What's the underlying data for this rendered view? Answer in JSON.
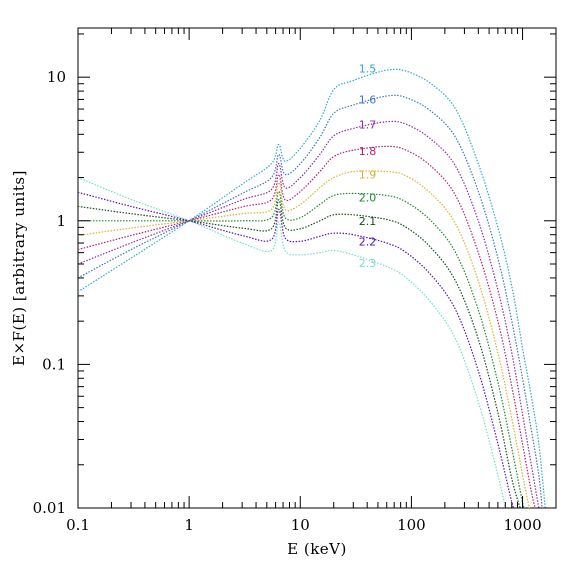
{
  "chart_data": {
    "type": "line",
    "title": "",
    "xlabel": "E (keV)",
    "ylabel": "E×F(E) [arbitrary units]",
    "xscale": "log",
    "yscale": "log",
    "xlim": [
      0.1,
      2000
    ],
    "ylim": [
      0.01,
      22
    ],
    "grid": false,
    "legend": "inline labels near the curve peaks",
    "x_ticks": [
      {
        "value": 0.1,
        "label": "0.1"
      },
      {
        "value": 1,
        "label": "1"
      },
      {
        "value": 10,
        "label": "10"
      },
      {
        "value": 100,
        "label": "100"
      },
      {
        "value": 1000,
        "label": "1000"
      }
    ],
    "y_ticks": [
      {
        "value": 0.01,
        "label": "0.01"
      },
      {
        "value": 0.1,
        "label": "0.1"
      },
      {
        "value": 1,
        "label": "1"
      },
      {
        "value": 10,
        "label": "10"
      }
    ],
    "line_style": "dotted",
    "series": [
      {
        "name": "1.5",
        "color": "#29a9d8",
        "label_at": [
          38,
          11.5
        ],
        "points": [
          [
            0.1,
            0.32
          ],
          [
            0.3,
            0.55
          ],
          [
            1,
            1.0
          ],
          [
            3,
            1.8
          ],
          [
            5.5,
            2.5
          ],
          [
            6.4,
            3.4
          ],
          [
            7.3,
            2.6
          ],
          [
            10,
            3.2
          ],
          [
            15,
            5.0
          ],
          [
            20,
            8.2
          ],
          [
            30,
            9.5
          ],
          [
            60,
            11.2
          ],
          [
            90,
            11.0
          ],
          [
            150,
            9.0
          ],
          [
            250,
            6.0
          ],
          [
            400,
            2.5
          ],
          [
            600,
            0.9
          ],
          [
            800,
            0.35
          ],
          [
            1000,
            0.13
          ],
          [
            1200,
            0.06
          ],
          [
            1400,
            0.028
          ],
          [
            1600,
            0.01
          ]
        ]
      },
      {
        "name": "1.6",
        "color": "#3b76bf",
        "label_at": [
          38,
          7.0
        ],
        "points": [
          [
            0.1,
            0.4
          ],
          [
            0.3,
            0.63
          ],
          [
            1,
            1.0
          ],
          [
            3,
            1.55
          ],
          [
            5.5,
            2.0
          ],
          [
            6.4,
            2.9
          ],
          [
            7.3,
            2.1
          ],
          [
            10,
            2.5
          ],
          [
            15,
            3.8
          ],
          [
            20,
            5.6
          ],
          [
            30,
            6.4
          ],
          [
            60,
            7.4
          ],
          [
            90,
            7.2
          ],
          [
            150,
            5.8
          ],
          [
            250,
            3.8
          ],
          [
            400,
            1.6
          ],
          [
            600,
            0.55
          ],
          [
            800,
            0.2
          ],
          [
            1000,
            0.08
          ],
          [
            1200,
            0.035
          ],
          [
            1400,
            0.017
          ],
          [
            1500,
            0.01
          ]
        ]
      },
      {
        "name": "1.7",
        "color": "#8e2cb3",
        "label_at": [
          38,
          4.7
        ],
        "points": [
          [
            0.1,
            0.5
          ],
          [
            0.3,
            0.7
          ],
          [
            1,
            1.0
          ],
          [
            3,
            1.4
          ],
          [
            5.5,
            1.65
          ],
          [
            6.4,
            2.5
          ],
          [
            7.3,
            1.7
          ],
          [
            10,
            2.0
          ],
          [
            15,
            2.9
          ],
          [
            20,
            3.9
          ],
          [
            30,
            4.4
          ],
          [
            60,
            4.9
          ],
          [
            90,
            4.7
          ],
          [
            150,
            3.7
          ],
          [
            250,
            2.4
          ],
          [
            400,
            1.0
          ],
          [
            600,
            0.33
          ],
          [
            800,
            0.12
          ],
          [
            1000,
            0.045
          ],
          [
            1200,
            0.02
          ],
          [
            1400,
            0.01
          ]
        ]
      },
      {
        "name": "1.8",
        "color": "#b51e7a",
        "label_at": [
          38,
          3.05
        ],
        "points": [
          [
            0.1,
            0.63
          ],
          [
            0.3,
            0.79
          ],
          [
            1,
            1.0
          ],
          [
            3,
            1.25
          ],
          [
            5.5,
            1.4
          ],
          [
            6.4,
            2.1
          ],
          [
            7.3,
            1.4
          ],
          [
            10,
            1.6
          ],
          [
            15,
            2.2
          ],
          [
            20,
            2.8
          ],
          [
            30,
            3.1
          ],
          [
            60,
            3.3
          ],
          [
            90,
            3.1
          ],
          [
            150,
            2.4
          ],
          [
            250,
            1.5
          ],
          [
            400,
            0.6
          ],
          [
            600,
            0.2
          ],
          [
            800,
            0.07
          ],
          [
            1000,
            0.028
          ],
          [
            1200,
            0.013
          ],
          [
            1300,
            0.01
          ]
        ]
      },
      {
        "name": "1.9",
        "color": "#d9b32e",
        "label_at": [
          38,
          2.1
        ],
        "points": [
          [
            0.1,
            0.79
          ],
          [
            0.3,
            0.89
          ],
          [
            1,
            1.0
          ],
          [
            3,
            1.12
          ],
          [
            5.5,
            1.2
          ],
          [
            6.4,
            1.85
          ],
          [
            7.3,
            1.2
          ],
          [
            10,
            1.3
          ],
          [
            15,
            1.7
          ],
          [
            20,
            2.0
          ],
          [
            30,
            2.2
          ],
          [
            60,
            2.2
          ],
          [
            90,
            2.05
          ],
          [
            150,
            1.55
          ],
          [
            250,
            0.95
          ],
          [
            400,
            0.38
          ],
          [
            600,
            0.12
          ],
          [
            800,
            0.042
          ],
          [
            1000,
            0.017
          ],
          [
            1150,
            0.01
          ]
        ]
      },
      {
        "name": "2.0",
        "color": "#1e8a2c",
        "label_at": [
          38,
          1.45
        ],
        "points": [
          [
            0.1,
            1.0
          ],
          [
            0.3,
            1.0
          ],
          [
            1,
            1.0
          ],
          [
            3,
            1.0
          ],
          [
            5.5,
            1.05
          ],
          [
            6.4,
            1.6
          ],
          [
            7.3,
            1.05
          ],
          [
            10,
            1.05
          ],
          [
            15,
            1.3
          ],
          [
            20,
            1.5
          ],
          [
            30,
            1.55
          ],
          [
            60,
            1.5
          ],
          [
            90,
            1.35
          ],
          [
            150,
            1.0
          ],
          [
            250,
            0.6
          ],
          [
            400,
            0.24
          ],
          [
            600,
            0.075
          ],
          [
            800,
            0.026
          ],
          [
            1000,
            0.011
          ],
          [
            1050,
            0.01
          ]
        ]
      },
      {
        "name": "2.1",
        "color": "#144d1a",
        "label_at": [
          38,
          1.0
        ],
        "points": [
          [
            0.1,
            1.26
          ],
          [
            0.3,
            1.12
          ],
          [
            1,
            1.0
          ],
          [
            3,
            0.89
          ],
          [
            5.5,
            0.88
          ],
          [
            6.4,
            1.4
          ],
          [
            7.3,
            0.9
          ],
          [
            10,
            0.88
          ],
          [
            15,
            1.0
          ],
          [
            20,
            1.1
          ],
          [
            30,
            1.1
          ],
          [
            60,
            1.02
          ],
          [
            90,
            0.9
          ],
          [
            150,
            0.65
          ],
          [
            250,
            0.38
          ],
          [
            400,
            0.15
          ],
          [
            600,
            0.046
          ],
          [
            800,
            0.016
          ],
          [
            950,
            0.01
          ]
        ]
      },
      {
        "name": "2.2",
        "color": "#5a12b8",
        "label_at": [
          38,
          0.72
        ],
        "points": [
          [
            0.1,
            1.58
          ],
          [
            0.3,
            1.26
          ],
          [
            1,
            1.0
          ],
          [
            3,
            0.79
          ],
          [
            5.5,
            0.74
          ],
          [
            6.4,
            1.2
          ],
          [
            7.3,
            0.76
          ],
          [
            10,
            0.72
          ],
          [
            15,
            0.78
          ],
          [
            20,
            0.82
          ],
          [
            30,
            0.8
          ],
          [
            60,
            0.7
          ],
          [
            90,
            0.6
          ],
          [
            150,
            0.42
          ],
          [
            250,
            0.24
          ],
          [
            400,
            0.09
          ],
          [
            600,
            0.028
          ],
          [
            800,
            0.011
          ],
          [
            850,
            0.01
          ]
        ]
      },
      {
        "name": "2.3",
        "color": "#6fe0cf",
        "label_at": [
          38,
          0.51
        ],
        "points": [
          [
            0.1,
            2.0
          ],
          [
            0.3,
            1.41
          ],
          [
            1,
            1.0
          ],
          [
            3,
            0.7
          ],
          [
            5.5,
            0.62
          ],
          [
            6.4,
            0.98
          ],
          [
            7.3,
            0.62
          ],
          [
            10,
            0.58
          ],
          [
            15,
            0.6
          ],
          [
            20,
            0.62
          ],
          [
            30,
            0.58
          ],
          [
            60,
            0.48
          ],
          [
            90,
            0.4
          ],
          [
            150,
            0.27
          ],
          [
            250,
            0.15
          ],
          [
            400,
            0.055
          ],
          [
            600,
            0.017
          ],
          [
            700,
            0.01
          ]
        ]
      }
    ]
  }
}
